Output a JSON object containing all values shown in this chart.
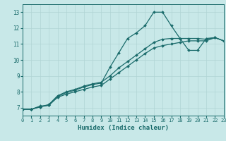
{
  "xlabel": "Humidex (Indice chaleur)",
  "bg_color": "#c8e8e8",
  "grid_color": "#b0d4d4",
  "line_color": "#1a6b6b",
  "xlim": [
    0,
    23
  ],
  "ylim": [
    6.5,
    13.5
  ],
  "xticks": [
    0,
    1,
    2,
    3,
    4,
    5,
    6,
    7,
    8,
    9,
    10,
    11,
    12,
    13,
    14,
    15,
    16,
    17,
    18,
    19,
    20,
    21,
    22,
    23
  ],
  "yticks": [
    7,
    8,
    9,
    10,
    11,
    12,
    13
  ],
  "line1_y": [
    6.9,
    6.9,
    7.1,
    7.15,
    7.7,
    7.95,
    8.1,
    8.3,
    8.45,
    8.55,
    9.55,
    10.45,
    11.35,
    11.7,
    12.15,
    13.0,
    13.0,
    12.15,
    11.35,
    10.6,
    10.6,
    11.35,
    11.4,
    11.2
  ],
  "line2_y": [
    6.9,
    6.9,
    7.05,
    7.2,
    7.75,
    8.0,
    8.15,
    8.35,
    8.5,
    8.6,
    9.0,
    9.5,
    9.9,
    10.3,
    10.7,
    11.1,
    11.3,
    11.35,
    11.35,
    11.35,
    11.35,
    11.3,
    11.4,
    11.2
  ],
  "line3_y": [
    6.9,
    6.9,
    7.05,
    7.15,
    7.65,
    7.85,
    8.0,
    8.15,
    8.3,
    8.4,
    8.8,
    9.2,
    9.6,
    10.0,
    10.4,
    10.75,
    10.9,
    11.0,
    11.1,
    11.2,
    11.2,
    11.2,
    11.4,
    11.2
  ]
}
